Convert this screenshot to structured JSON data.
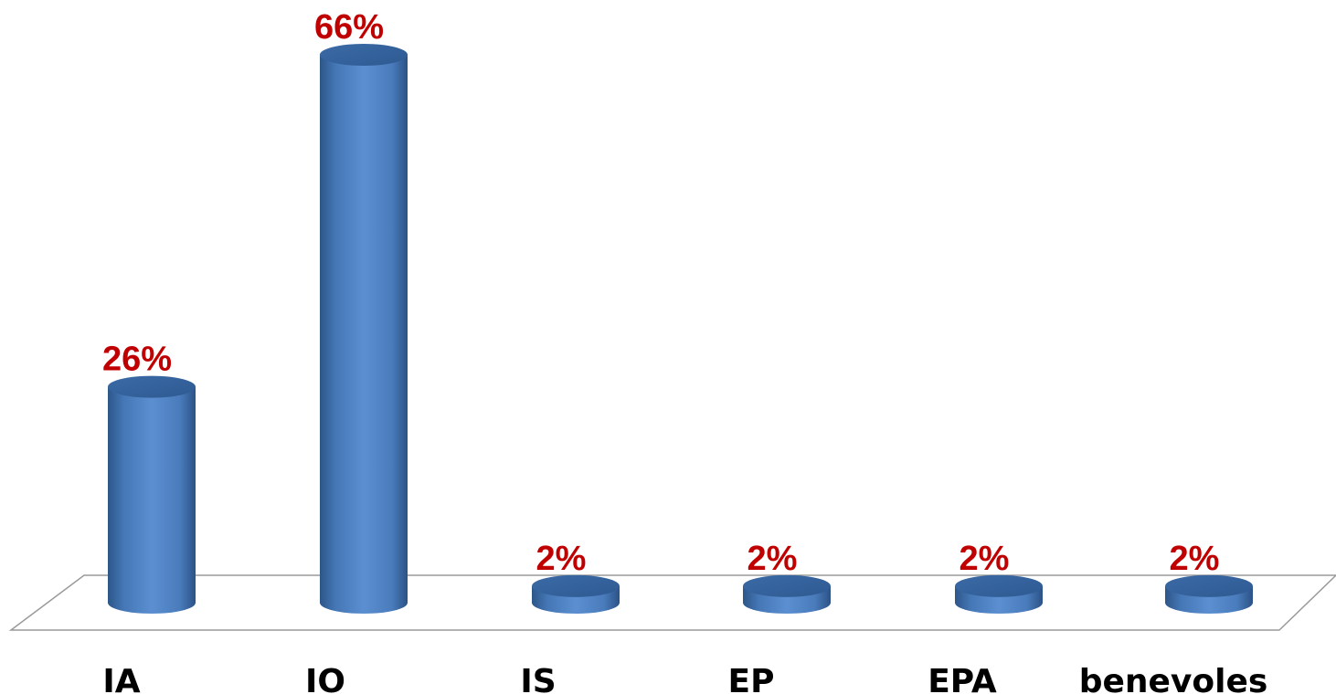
{
  "chart_data": {
    "type": "bar",
    "style": "3d-cylinder",
    "categories": [
      "IA",
      "IO",
      "IS",
      "EP",
      "EPA",
      "benevoles"
    ],
    "values": [
      26,
      66,
      2,
      2,
      2,
      2
    ],
    "data_labels": [
      "26%",
      "66%",
      "2%",
      "2%",
      "2%",
      "2%"
    ],
    "title": "",
    "xlabel": "",
    "ylabel": "",
    "ylim": [
      0,
      66
    ],
    "grid": false,
    "legend": "none",
    "bar_color": "#4f81bd",
    "label_color": "#c00000"
  }
}
